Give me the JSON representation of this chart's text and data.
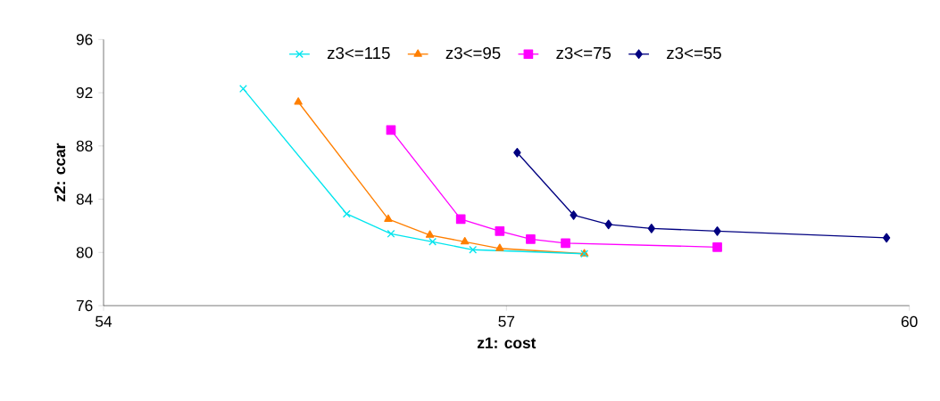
{
  "chart_data": {
    "type": "line",
    "xlabel": "z1: cost",
    "ylabel": "z2: ccar",
    "xlim": [
      54,
      60
    ],
    "xticks": [
      54,
      57,
      60
    ],
    "ylim": [
      76,
      96
    ],
    "yticks": [
      76,
      80,
      84,
      88,
      92,
      96
    ],
    "grid": false,
    "legend": "top",
    "line_style": "solid",
    "series": [
      {
        "name": "z3<=115",
        "color": "#00e5ee",
        "marker": "cross",
        "x": [
          55.04,
          55.81,
          56.14,
          56.45,
          56.75,
          57.58
        ],
        "values": [
          92.3,
          82.9,
          81.4,
          80.8,
          80.2,
          79.9
        ]
      },
      {
        "name": "z3<=95",
        "color": "#ff7f00",
        "marker": "triangle",
        "x": [
          55.45,
          56.12,
          56.43,
          56.69,
          56.95,
          57.58
        ],
        "values": [
          91.3,
          82.5,
          81.3,
          80.8,
          80.3,
          79.9
        ]
      },
      {
        "name": "z3<=75",
        "color": "#ff00ff",
        "marker": "square",
        "x": [
          56.14,
          56.66,
          56.95,
          57.18,
          57.44,
          58.57
        ],
        "values": [
          89.2,
          82.5,
          81.6,
          81.0,
          80.7,
          80.4
        ]
      },
      {
        "name": "z3<=55",
        "color": "#000080",
        "marker": "diamond",
        "x": [
          57.08,
          57.5,
          57.76,
          58.08,
          58.57,
          59.83
        ],
        "values": [
          87.5,
          82.8,
          82.1,
          81.8,
          81.6,
          81.1
        ]
      }
    ]
  }
}
